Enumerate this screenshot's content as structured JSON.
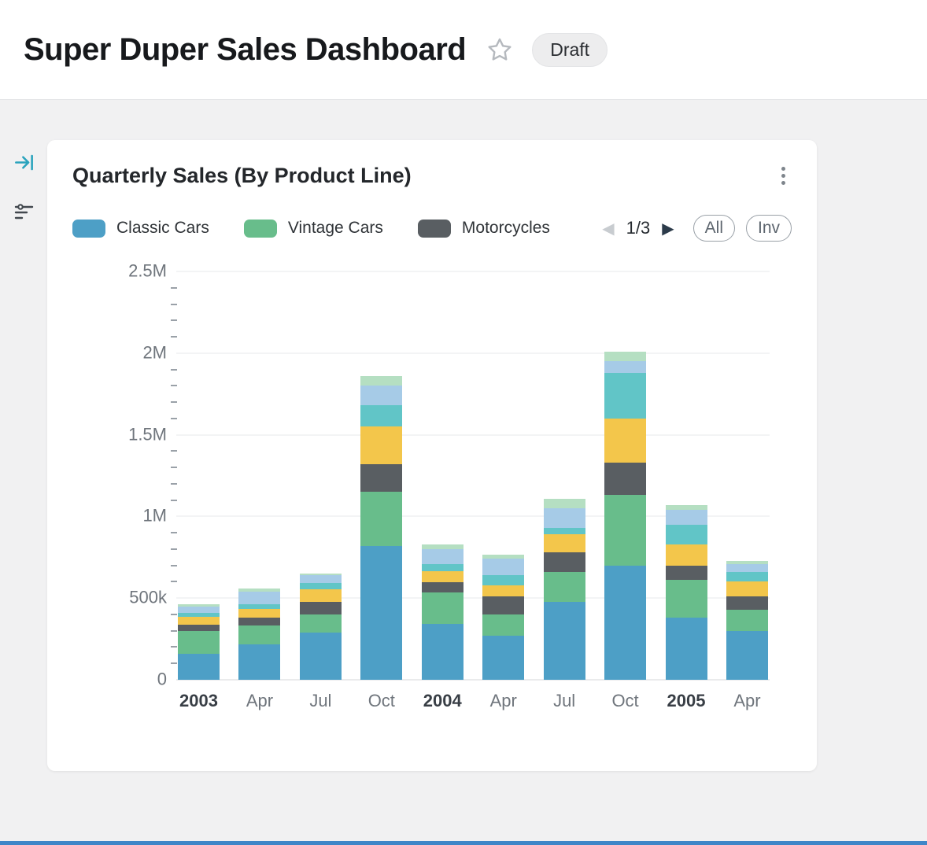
{
  "header": {
    "title": "Super Duper Sales Dashboard",
    "status_badge": "Draft"
  },
  "left_rail": {
    "icons": [
      "collapse-panel-icon",
      "filter-icon"
    ]
  },
  "card": {
    "title": "Quarterly Sales (By Product Line)",
    "menu_icon": "kebab-menu-icon",
    "legend": {
      "items": [
        {
          "label": "Classic Cars",
          "color": "#4d9fc6"
        },
        {
          "label": "Vintage Cars",
          "color": "#68bd8b"
        },
        {
          "label": "Motorcycles",
          "color": "#595e62"
        }
      ]
    },
    "pagination": {
      "prev": "◀",
      "label": "1/3",
      "next": "▶"
    },
    "pills": [
      {
        "label": "All"
      },
      {
        "label": "Inv"
      }
    ]
  },
  "chart_data": {
    "type": "bar",
    "stacked": true,
    "title": "Quarterly Sales (By Product Line)",
    "categories": [
      "2003",
      "Apr",
      "Jul",
      "Oct",
      "2004",
      "Apr",
      "Jul",
      "Oct",
      "2005",
      "Apr"
    ],
    "bold_categories": [
      "2003",
      "2004",
      "2005"
    ],
    "y_ticks": [
      {
        "label": "0",
        "value_k": 0
      },
      {
        "label": "500k",
        "value_k": 500
      },
      {
        "label": "1M",
        "value_k": 1000
      },
      {
        "label": "1.5M",
        "value_k": 1500
      },
      {
        "label": "2M",
        "value_k": 2000
      },
      {
        "label": "2.5M",
        "value_k": 2500
      }
    ],
    "ylim_k": [
      0,
      2500
    ],
    "minor_tick_step_k": 100,
    "values_unit": "thousands",
    "legend_position": "top",
    "legend_page_label": "1/3",
    "grid": "horizontal",
    "series": [
      {
        "id": "classic-cars",
        "name": "Classic Cars",
        "color": "#4d9fc6",
        "values_k": [
          160,
          215,
          290,
          820,
          340,
          270,
          475,
          700,
          380,
          300
        ]
      },
      {
        "id": "vintage-cars",
        "name": "Vintage Cars",
        "color": "#68bd8b",
        "values_k": [
          140,
          120,
          110,
          330,
          195,
          130,
          185,
          430,
          230,
          130
        ]
      },
      {
        "id": "motorcycles",
        "name": "Motorcycles",
        "color": "#595e62",
        "values_k": [
          35,
          45,
          75,
          170,
          60,
          110,
          120,
          200,
          90,
          80
        ]
      },
      {
        "id": "series-4-yellow",
        "name": "",
        "color": "#f3c64b",
        "values_k": [
          50,
          55,
          80,
          230,
          70,
          70,
          110,
          270,
          130,
          90
        ]
      },
      {
        "id": "series-5-teal",
        "name": "",
        "color": "#61c5c7",
        "values_k": [
          25,
          30,
          40,
          130,
          45,
          60,
          40,
          280,
          120,
          60
        ]
      },
      {
        "id": "series-6-lightblue",
        "name": "",
        "color": "#a6cbe7",
        "values_k": [
          40,
          75,
          45,
          120,
          90,
          100,
          120,
          70,
          90,
          50
        ]
      },
      {
        "id": "series-7-lightgreen",
        "name": "",
        "color": "#b5dfc2",
        "values_k": [
          10,
          20,
          10,
          60,
          30,
          25,
          60,
          60,
          30,
          15
        ]
      }
    ]
  }
}
